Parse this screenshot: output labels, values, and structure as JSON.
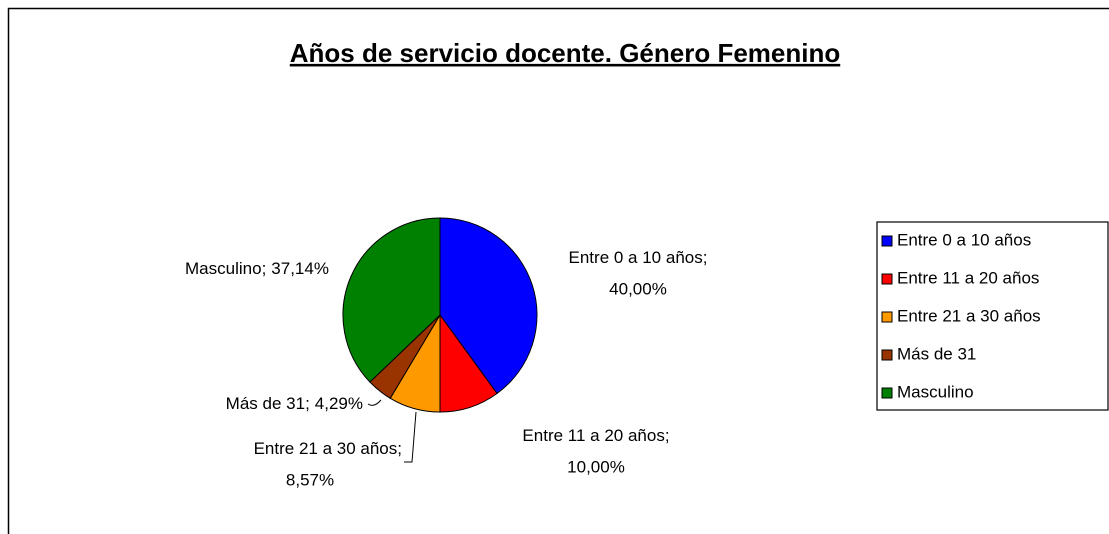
{
  "chart_data": {
    "type": "pie",
    "title": "Años de servicio docente. Género Femenino",
    "categories": [
      "Entre 0 a 10 años",
      "Entre 11 a 20 años",
      "Entre 21 a 30 años",
      "Más de 31",
      "Masculino"
    ],
    "values": [
      40.0,
      10.0,
      8.57,
      4.29,
      37.14
    ],
    "value_labels": [
      "40,00%",
      "10,00%",
      "8,57%",
      "4,29%",
      "37,14%"
    ],
    "label_separator": ";",
    "colors": [
      "#0000ff",
      "#ff0000",
      "#ff9900",
      "#993300",
      "#008000"
    ],
    "legend": "right"
  }
}
